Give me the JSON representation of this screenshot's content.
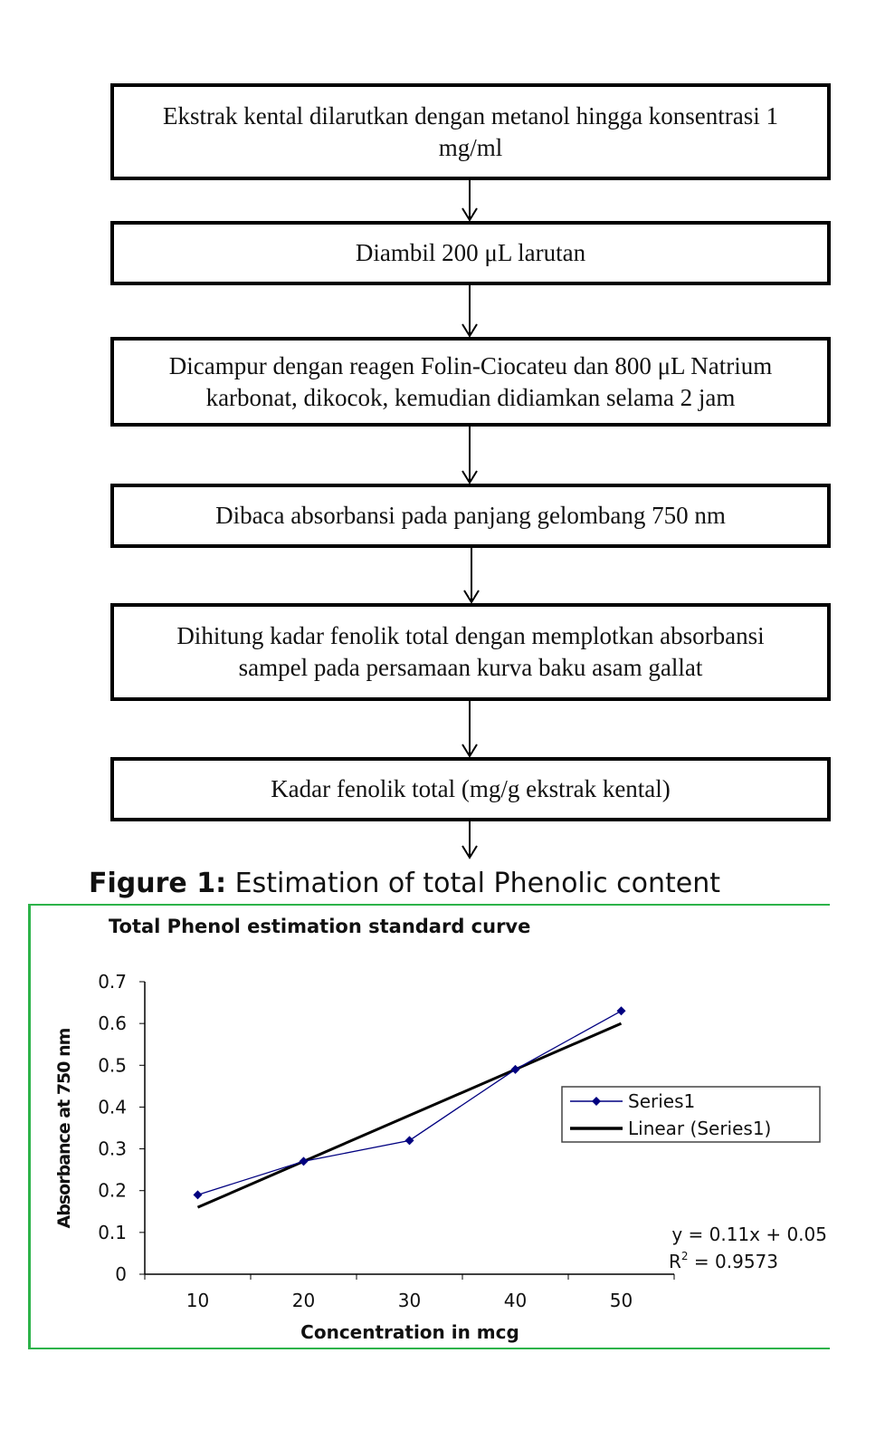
{
  "flowchart": {
    "steps": [
      "Ekstrak kental dilarutkan dengan metanol hingga konsentrasi 1 mg/ml",
      "Diambil 200 μL larutan",
      "Dicampur dengan reagen Folin-Ciocateu dan  800 μL Natrium karbonat, dikocok, kemudian didiamkan selama 2 jam",
      "Dibaca absorbansi pada panjang gelombang 750 nm",
      "Dihitung kadar fenolik total dengan memplotkan absorbansi sampel pada persamaan kurva baku asam gallat",
      "Kadar fenolik total (mg/g ekstrak kental)"
    ]
  },
  "figure_caption": {
    "label": "Figure 1:",
    "text": " Estimation of total Phenolic content"
  },
  "chart_data": {
    "type": "line",
    "title": "Total Phenol estimation standard curve",
    "xlabel": "Concentration in mcg",
    "ylabel": "Absorbance at 750 nm",
    "categories": [
      "10",
      "20",
      "30",
      "40",
      "50"
    ],
    "series": [
      {
        "name": "Series1",
        "values": [
          0.19,
          0.27,
          0.32,
          0.49,
          0.63
        ],
        "color": "#000080",
        "marker": "diamond"
      },
      {
        "name": "Linear (Series1)",
        "values": [
          0.16,
          0.27,
          0.38,
          0.49,
          0.6
        ],
        "color": "#000000"
      }
    ],
    "yticks": [
      "0",
      "0.1",
      "0.2",
      "0.3",
      "0.4",
      "0.5",
      "0.6",
      "0.7"
    ],
    "ylim": [
      0,
      0.7
    ],
    "grid": false,
    "legend": "right",
    "equation": "y = 0.11x + 0.05",
    "r2_label": "R",
    "r2_sup": "2",
    "r2_value": " = 0.9573",
    "frame_color": "#2db34a"
  }
}
